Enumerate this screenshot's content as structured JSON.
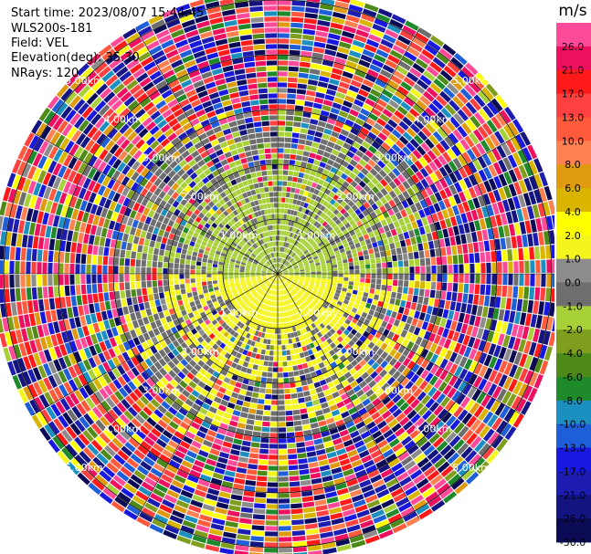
{
  "header": {
    "start_time": "Start time: 2023/08/07 15:44:45",
    "instrument": "WLS200s-181",
    "field": "Field: VEL",
    "elevation": "Elevation(deg): 35.30",
    "nrays": "NRays: 120"
  },
  "chart_data": {
    "type": "heatmap",
    "subtype": "polar-ppi",
    "field": "VEL",
    "unit": "m/s",
    "n_rays": 120,
    "elevation_deg": 35.3,
    "grid": "on",
    "range_rings_km": [
      1.0,
      2.0,
      3.0,
      4.0,
      5.0
    ],
    "range_ring_labels": [
      "1.00km",
      "2.00km",
      "3.00km",
      "4.00km",
      "5.00km"
    ],
    "colorbar": {
      "position": "right",
      "boundaries": [
        -30,
        -26,
        -21,
        -17,
        -13,
        -10,
        -8,
        -6,
        -4,
        -2,
        -1,
        0,
        1,
        2,
        4,
        6,
        8,
        10,
        13,
        17,
        21,
        26,
        30
      ],
      "tick_labels": [
        "26.0",
        "21.0",
        "17.0",
        "13.0",
        "10.0",
        "8.0",
        "6.0",
        "4.0",
        "2.0",
        "1.0",
        "0.0",
        "-1.0",
        "-2.0",
        "-4.0",
        "-6.0",
        "-8.0",
        "-10.0",
        "-13.0",
        "-17.0",
        "-21.0",
        "-26.0",
        "-30.0"
      ],
      "colors": [
        "#0b0b55",
        "#141480",
        "#1c1cb0",
        "#1818e0",
        "#1e5ed8",
        "#1b8fbf",
        "#1f8a2a",
        "#4e8a18",
        "#7f9e1e",
        "#a8d038",
        "#6e6e6e",
        "#8c8c8c",
        "#f5f51e",
        "#ffff00",
        "#d9b400",
        "#e09a10",
        "#ff8050",
        "#ff5a3c",
        "#ff4040",
        "#ff1a1a",
        "#ee1060",
        "#ff4a9a"
      ]
    },
    "pattern": {
      "near_range_km": 1.0,
      "mid_range_km": 3.0,
      "far_range_km": 5.0,
      "near_field_values": "approximately -2 to +2 m/s (yellow toward south, green toward north)",
      "far_field_values": "noisy, spanning -30 to 30 m/s"
    }
  }
}
